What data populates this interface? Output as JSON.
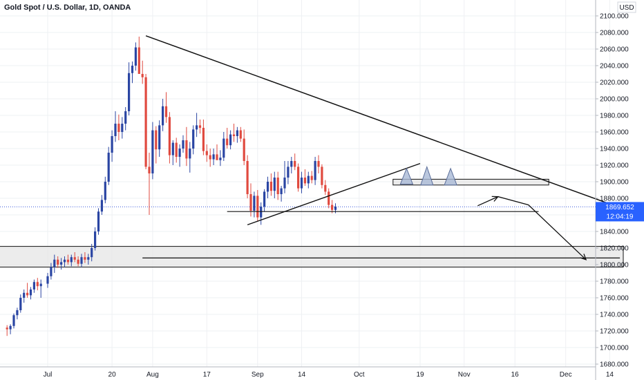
{
  "header": {
    "title": "Gold Spot / U.S. Dollar, 1D, OANDA",
    "currency": "USD"
  },
  "price_tag": {
    "price": "1869.652",
    "countdown": "12:04:19"
  },
  "colors": {
    "bull": "#2a45a3",
    "bear": "#e04a3f",
    "grid": "#eef0f3",
    "price_line": "#3b5bdb",
    "drawing": "#111111",
    "zone_fill": "#e6e6e6",
    "pattern_fill": "#a9b9d6"
  },
  "chart_data": {
    "type": "candlestick",
    "title": "Gold Spot / U.S. Dollar, 1D, OANDA",
    "y_unit": "USD",
    "y_range": [
      1680,
      2110
    ],
    "y_ticks": [
      "1680.000",
      "1700.000",
      "1720.000",
      "1740.000",
      "1760.000",
      "1780.000",
      "1800.000",
      "1820.000",
      "1840.000",
      "1860.000",
      "1880.000",
      "1900.000",
      "1920.000",
      "1940.000",
      "1960.000",
      "1980.000",
      "2000.000",
      "2020.000",
      "2040.000",
      "2060.000",
      "2080.000",
      "2100.000"
    ],
    "x_ticks": [
      {
        "label": "Jul",
        "day": 0
      },
      {
        "label": "20",
        "day": 19
      },
      {
        "label": "Aug",
        "day": 31
      },
      {
        "label": "17",
        "day": 47
      },
      {
        "label": "Sep",
        "day": 62
      },
      {
        "label": "14",
        "day": 75
      },
      {
        "label": "Oct",
        "day": 92
      },
      {
        "label": "19",
        "day": 110
      },
      {
        "label": "Nov",
        "day": 123
      },
      {
        "label": "16",
        "day": 138
      },
      {
        "label": "Dec",
        "day": 153
      },
      {
        "label": "14",
        "day": 166
      }
    ],
    "current_price": 1869.652,
    "candles": [
      [
        -12,
        1724,
        1727,
        1714,
        1722
      ],
      [
        -11,
        1722,
        1728,
        1716,
        1726
      ],
      [
        -10,
        1726,
        1741,
        1723,
        1739
      ],
      [
        -9,
        1739,
        1748,
        1734,
        1745
      ],
      [
        -8,
        1745,
        1764,
        1742,
        1760
      ],
      [
        -7,
        1760,
        1770,
        1754,
        1766
      ],
      [
        -6,
        1766,
        1778,
        1760,
        1763
      ],
      [
        -5,
        1763,
        1773,
        1758,
        1770
      ],
      [
        -4,
        1770,
        1782,
        1766,
        1779
      ],
      [
        -3,
        1779,
        1784,
        1769,
        1774
      ],
      [
        -2,
        1774,
        1782,
        1760,
        1777
      ],
      [
        0,
        1777,
        1790,
        1772,
        1786
      ],
      [
        1,
        1786,
        1802,
        1782,
        1797
      ],
      [
        2,
        1797,
        1812,
        1790,
        1806
      ],
      [
        3,
        1806,
        1810,
        1796,
        1800
      ],
      [
        4,
        1800,
        1808,
        1794,
        1803
      ],
      [
        5,
        1803,
        1810,
        1797,
        1806
      ],
      [
        6,
        1806,
        1812,
        1800,
        1803
      ],
      [
        7,
        1803,
        1812,
        1798,
        1809
      ],
      [
        8,
        1809,
        1815,
        1803,
        1806
      ],
      [
        9,
        1806,
        1810,
        1798,
        1801
      ],
      [
        10,
        1801,
        1813,
        1797,
        1809
      ],
      [
        11,
        1809,
        1815,
        1802,
        1806
      ],
      [
        12,
        1806,
        1813,
        1800,
        1809
      ],
      [
        13,
        1809,
        1825,
        1804,
        1820
      ],
      [
        14,
        1820,
        1845,
        1817,
        1840
      ],
      [
        15,
        1840,
        1868,
        1836,
        1864
      ],
      [
        16,
        1864,
        1884,
        1860,
        1878
      ],
      [
        17,
        1878,
        1906,
        1874,
        1900
      ],
      [
        18,
        1900,
        1942,
        1896,
        1935
      ],
      [
        19,
        1935,
        1962,
        1924,
        1955
      ],
      [
        20,
        1955,
        1985,
        1948,
        1970
      ],
      [
        21,
        1970,
        1981,
        1950,
        1960
      ],
      [
        22,
        1960,
        1978,
        1952,
        1970
      ],
      [
        23,
        1970,
        1990,
        1962,
        1985
      ],
      [
        24,
        1985,
        2044,
        1980,
        2031
      ],
      [
        25,
        2031,
        2045,
        2019,
        2040
      ],
      [
        26,
        2040,
        2068,
        2034,
        2062
      ],
      [
        27,
        2062,
        2075,
        2033,
        2030
      ],
      [
        28,
        2030,
        2046,
        2018,
        2026
      ],
      [
        29,
        2026,
        2030,
        1915,
        1918
      ],
      [
        30,
        1918,
        1935,
        1860,
        1910
      ],
      [
        31,
        1910,
        1972,
        1903,
        1962
      ],
      [
        32,
        1962,
        1967,
        1922,
        1939
      ],
      [
        33,
        1939,
        1974,
        1930,
        1968
      ],
      [
        34,
        1968,
        2000,
        1961,
        1991
      ],
      [
        35,
        1991,
        2008,
        1971,
        1978
      ],
      [
        36,
        1978,
        1984,
        1922,
        1932
      ],
      [
        37,
        1932,
        1950,
        1920,
        1947
      ],
      [
        38,
        1947,
        1953,
        1923,
        1930
      ],
      [
        39,
        1930,
        1945,
        1918,
        1940
      ],
      [
        40,
        1940,
        1956,
        1935,
        1950
      ],
      [
        41,
        1950,
        1966,
        1919,
        1928
      ],
      [
        42,
        1928,
        1948,
        1911,
        1940
      ],
      [
        43,
        1940,
        1968,
        1933,
        1963
      ],
      [
        44,
        1963,
        1983,
        1954,
        1968
      ],
      [
        45,
        1968,
        1975,
        1958,
        1965
      ],
      [
        46,
        1965,
        1975,
        1932,
        1937
      ],
      [
        47,
        1937,
        1945,
        1924,
        1932
      ],
      [
        48,
        1932,
        1940,
        1918,
        1927
      ],
      [
        49,
        1927,
        1940,
        1920,
        1933
      ],
      [
        50,
        1933,
        1945,
        1928,
        1926
      ],
      [
        51,
        1926,
        1938,
        1919,
        1929
      ],
      [
        52,
        1929,
        1960,
        1925,
        1952
      ],
      [
        53,
        1952,
        1965,
        1940,
        1944
      ],
      [
        54,
        1944,
        1962,
        1939,
        1957
      ],
      [
        55,
        1957,
        1970,
        1948,
        1955
      ],
      [
        56,
        1955,
        1966,
        1947,
        1962
      ],
      [
        57,
        1962,
        1966,
        1948,
        1952
      ],
      [
        58,
        1952,
        1963,
        1920,
        1925
      ],
      [
        59,
        1925,
        1932,
        1880,
        1885
      ],
      [
        60,
        1885,
        1898,
        1858,
        1865
      ],
      [
        61,
        1865,
        1888,
        1857,
        1883
      ],
      [
        62,
        1883,
        1890,
        1852,
        1857
      ],
      [
        63,
        1857,
        1875,
        1848,
        1870
      ],
      [
        64,
        1870,
        1891,
        1864,
        1888
      ],
      [
        65,
        1888,
        1906,
        1880,
        1900
      ],
      [
        66,
        1900,
        1910,
        1883,
        1889
      ],
      [
        67,
        1889,
        1912,
        1880,
        1905
      ],
      [
        68,
        1905,
        1912,
        1878,
        1885
      ],
      [
        69,
        1885,
        1895,
        1876,
        1892
      ],
      [
        70,
        1892,
        1925,
        1886,
        1905
      ],
      [
        71,
        1905,
        1925,
        1897,
        1918
      ],
      [
        72,
        1918,
        1930,
        1910,
        1925
      ],
      [
        73,
        1925,
        1934,
        1914,
        1918
      ],
      [
        74,
        1918,
        1922,
        1888,
        1892
      ],
      [
        75,
        1892,
        1912,
        1886,
        1905
      ],
      [
        76,
        1905,
        1915,
        1895,
        1898
      ],
      [
        77,
        1898,
        1912,
        1892,
        1907
      ],
      [
        78,
        1907,
        1913,
        1898,
        1902
      ],
      [
        79,
        1902,
        1930,
        1896,
        1925
      ],
      [
        80,
        1925,
        1932,
        1910,
        1918
      ],
      [
        81,
        1918,
        1921,
        1892,
        1896
      ],
      [
        82,
        1896,
        1902,
        1884,
        1888
      ],
      [
        83,
        1888,
        1892,
        1868,
        1872
      ],
      [
        84,
        1872,
        1878,
        1862,
        1866
      ],
      [
        85,
        1866,
        1874,
        1862,
        1870
      ]
    ],
    "annotations": {
      "descending_trendline": {
        "from": [
          29,
          2076
        ],
        "to": [
          183,
          1848
        ]
      },
      "rising_trendline": {
        "from": [
          59,
          1848
        ],
        "to": [
          110,
          1922
        ]
      },
      "lower_horizontal": {
        "from": [
          28,
          1808
        ],
        "to": [
          169,
          1808
        ]
      },
      "support_line_rectangle": {
        "from": [
          -15,
          1822
        ],
        "to": [
          170,
          1797
        ]
      },
      "mid_horizontal_line": {
        "from": [
          53,
          1864
        ],
        "to": [
          145,
          1864
        ]
      },
      "upper_rectangle": {
        "from": [
          102,
          1903
        ],
        "to": [
          148,
          1896
        ]
      },
      "projection_arrow": {
        "points": [
          [
            127,
            1871
          ],
          [
            133,
            1882
          ],
          [
            142,
            1872
          ],
          [
            159,
            1806
          ]
        ]
      }
    }
  }
}
